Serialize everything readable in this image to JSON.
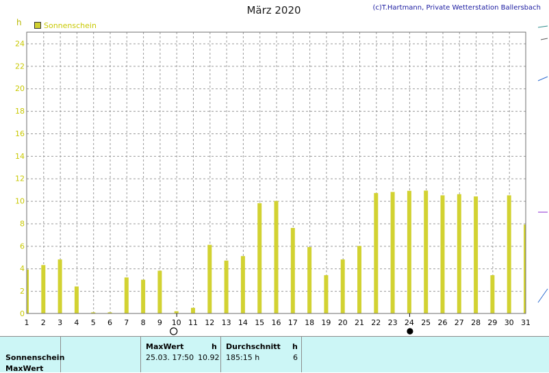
{
  "header": {
    "title": "März 2020",
    "copyright": "(c)T.Hartmann, Private Wetterstation Ballersbach"
  },
  "legend": {
    "label": "Sonnenschein"
  },
  "colors": {
    "bar": "#d2d232",
    "axis_text": "#c8c800",
    "grid": "#999999",
    "footer_bg": "#ccf6f6"
  },
  "icons": [
    "full-moon-icon",
    "new-moon-icon"
  ],
  "moon_phases": [
    {
      "day": 10,
      "icon": "full-moon-icon"
    },
    {
      "day": 24,
      "icon": "new-moon-icon"
    }
  ],
  "chart_data": {
    "type": "bar",
    "title": "März 2020",
    "ylabel": "h",
    "xlabel": "",
    "ylim": [
      0,
      25
    ],
    "yticks": [
      0,
      2,
      4,
      6,
      8,
      10,
      12,
      14,
      16,
      18,
      20,
      22,
      24
    ],
    "grid": true,
    "legend_position": "top-left",
    "categories": [
      "1",
      "2",
      "3",
      "4",
      "5",
      "6",
      "7",
      "8",
      "9",
      "10",
      "11",
      "12",
      "13",
      "14",
      "15",
      "16",
      "17",
      "18",
      "19",
      "20",
      "21",
      "22",
      "23",
      "24",
      "25",
      "26",
      "27",
      "28",
      "29",
      "30",
      "31"
    ],
    "series": [
      {
        "name": "Sonnenschein",
        "values": [
          3.9,
          4.3,
          4.8,
          2.4,
          0.1,
          0.1,
          3.2,
          3.0,
          3.8,
          0.2,
          0.5,
          6.1,
          4.7,
          5.1,
          9.8,
          10.0,
          7.6,
          5.9,
          3.4,
          4.8,
          6.0,
          10.7,
          10.8,
          10.9,
          10.92,
          10.5,
          10.6,
          10.4,
          3.4,
          10.5,
          7.9
        ]
      }
    ]
  },
  "footer": {
    "row1_label": "Sonnenschein",
    "row2_label": "MaxWert",
    "max_header": "MaxWert",
    "max_unit": "h",
    "max_date": "25.03.  17:50",
    "max_value": "10.92",
    "avg_header": "Durchschnitt",
    "avg_unit": "h",
    "avg_total": "185:15 h",
    "avg_value": "6"
  }
}
